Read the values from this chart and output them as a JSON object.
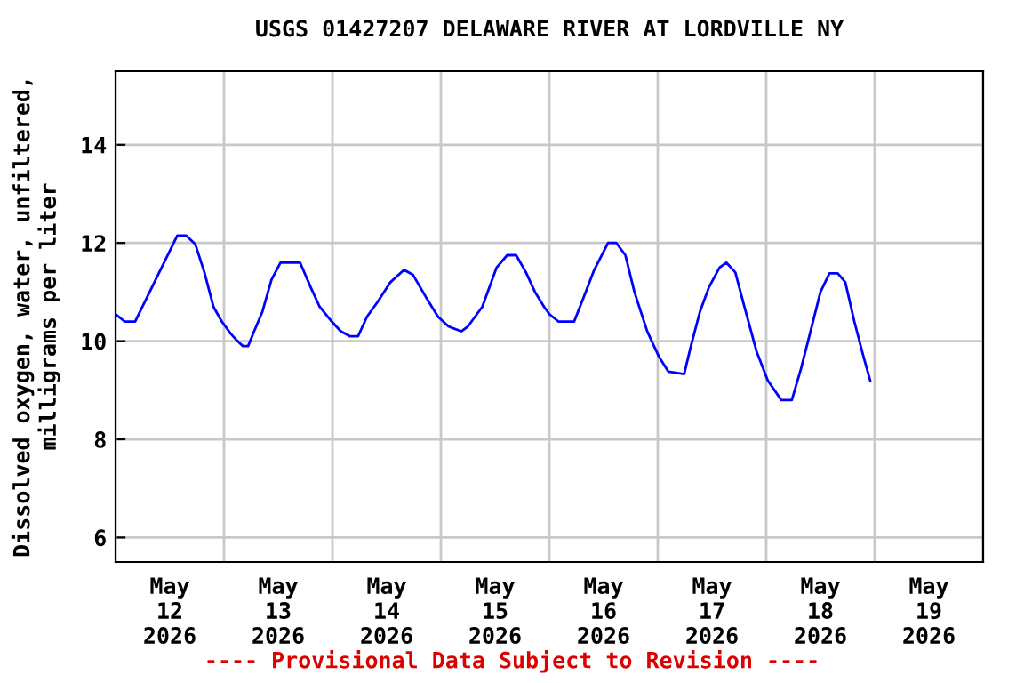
{
  "chart_data": {
    "type": "line",
    "title": "USGS 01427207 DELAWARE RIVER AT LORDVILLE NY",
    "ylabel": "Dissolved oxygen, water, unfiltered,\nmilligrams per liter",
    "x": [
      "2026-05-12T00:00",
      "2026-05-12T02:00",
      "2026-05-12T04:20",
      "2026-05-12T13:40",
      "2026-05-12T15:40",
      "2026-05-12T17:40",
      "2026-05-12T19:40",
      "2026-05-12T21:40",
      "2026-05-12T23:30",
      "2026-05-13T01:30",
      "2026-05-13T03:00",
      "2026-05-13T04:10",
      "2026-05-13T05:20",
      "2026-05-13T06:40",
      "2026-05-13T08:30",
      "2026-05-13T10:30",
      "2026-05-13T12:30",
      "2026-05-13T16:50",
      "2026-05-13T19:10",
      "2026-05-13T21:10",
      "2026-05-13T23:50",
      "2026-05-14T01:50",
      "2026-05-14T03:50",
      "2026-05-14T05:40",
      "2026-05-14T07:40",
      "2026-05-14T10:00",
      "2026-05-14T12:50",
      "2026-05-14T15:50",
      "2026-05-14T17:50",
      "2026-05-14T20:40",
      "2026-05-14T23:20",
      "2026-05-15T01:40",
      "2026-05-15T04:30",
      "2026-05-15T06:00",
      "2026-05-15T09:10",
      "2026-05-15T12:20",
      "2026-05-15T14:40",
      "2026-05-15T16:40",
      "2026-05-15T18:50",
      "2026-05-15T20:50",
      "2026-05-15T22:50",
      "2026-05-16T00:00",
      "2026-05-16T02:00",
      "2026-05-16T05:30",
      "2026-05-16T07:50",
      "2026-05-16T09:50",
      "2026-05-16T13:00",
      "2026-05-16T14:50",
      "2026-05-16T16:50",
      "2026-05-16T18:50",
      "2026-05-16T21:40",
      "2026-05-17T00:20",
      "2026-05-17T02:20",
      "2026-05-17T05:50",
      "2026-05-17T07:20",
      "2026-05-17T09:20",
      "2026-05-17T11:20",
      "2026-05-17T13:40",
      "2026-05-17T15:10",
      "2026-05-17T17:10",
      "2026-05-17T19:10",
      "2026-05-17T21:50",
      "2026-05-18T00:20",
      "2026-05-18T03:20",
      "2026-05-18T05:40",
      "2026-05-18T07:40",
      "2026-05-18T09:40",
      "2026-05-18T12:00",
      "2026-05-18T14:00",
      "2026-05-18T15:50",
      "2026-05-18T17:30",
      "2026-05-18T19:30",
      "2026-05-18T21:20",
      "2026-05-18T23:00"
    ],
    "series": [
      {
        "color": "#0000ff",
        "values": [
          10.55,
          10.4,
          10.4,
          12.15,
          12.15,
          11.97,
          11.4,
          10.7,
          10.4,
          10.15,
          10.0,
          9.9,
          9.9,
          10.2,
          10.6,
          11.25,
          11.6,
          11.6,
          11.1,
          10.7,
          10.4,
          10.2,
          10.1,
          10.1,
          10.5,
          10.8,
          11.2,
          11.45,
          11.35,
          10.9,
          10.5,
          10.3,
          10.2,
          10.3,
          10.7,
          11.5,
          11.75,
          11.75,
          11.4,
          11.0,
          10.7,
          10.55,
          10.4,
          10.4,
          10.95,
          11.43,
          12.0,
          12.0,
          11.75,
          11.0,
          10.2,
          9.67,
          9.38,
          9.33,
          9.9,
          10.6,
          11.1,
          11.5,
          11.6,
          11.4,
          10.7,
          9.8,
          9.2,
          8.8,
          8.8,
          9.43,
          10.15,
          11.0,
          11.38,
          11.38,
          11.2,
          10.4,
          9.75,
          9.2
        ]
      }
    ],
    "xlim": [
      "2026-05-12T00:00",
      "2026-05-20T00:00"
    ],
    "xticks": [
      {
        "value": "2026-05-12T00:00",
        "label": null
      },
      {
        "value": "2026-05-12T12:00",
        "label": "May\n12\n2026"
      },
      {
        "value": "2026-05-13T00:00",
        "label": null
      },
      {
        "value": "2026-05-13T12:00",
        "label": "May\n13\n2026"
      },
      {
        "value": "2026-05-14T00:00",
        "label": null
      },
      {
        "value": "2026-05-14T12:00",
        "label": "May\n14\n2026"
      },
      {
        "value": "2026-05-15T00:00",
        "label": null
      },
      {
        "value": "2026-05-15T12:00",
        "label": "May\n15\n2026"
      },
      {
        "value": "2026-05-16T00:00",
        "label": null
      },
      {
        "value": "2026-05-16T12:00",
        "label": "May\n16\n2026"
      },
      {
        "value": "2026-05-17T00:00",
        "label": null
      },
      {
        "value": "2026-05-17T12:00",
        "label": "May\n17\n2026"
      },
      {
        "value": "2026-05-18T00:00",
        "label": null
      },
      {
        "value": "2026-05-18T12:00",
        "label": "May\n18\n2026"
      },
      {
        "value": "2026-05-19T00:00",
        "label": null
      },
      {
        "value": "2026-05-19T12:00",
        "label": "May\n19\n2026"
      },
      {
        "value": "2026-05-20T00:00",
        "label": null
      }
    ],
    "ylim": [
      5.5,
      15.5
    ],
    "yticks": [
      6,
      8,
      10,
      12,
      14
    ],
    "grid": true,
    "marker": "none",
    "line_style": "solid",
    "annotations": [
      "---- Provisional Data Subject to Revision ----"
    ]
  }
}
